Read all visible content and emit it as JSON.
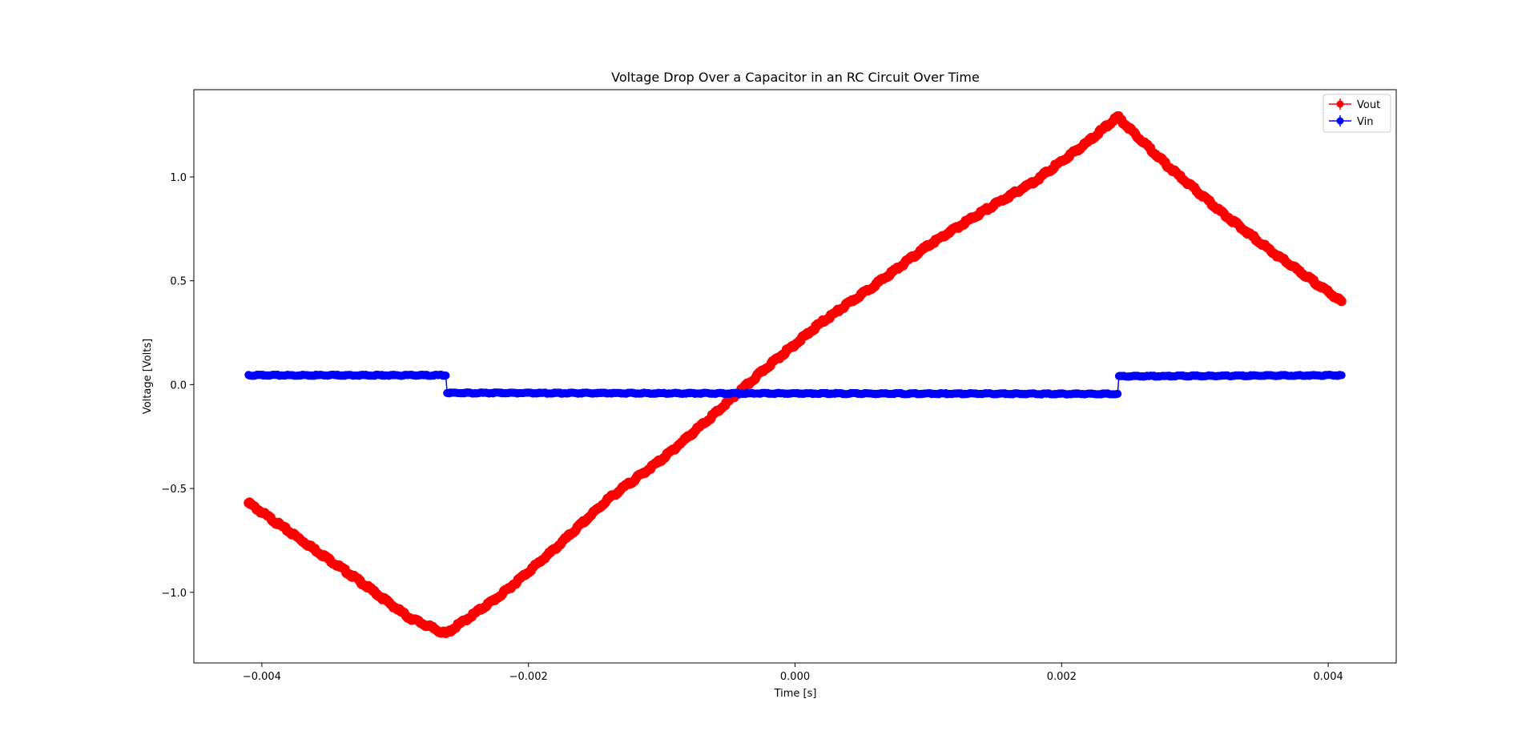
{
  "chart_data": {
    "type": "line",
    "title": "Voltage Drop Over a Capacitor in an RC Circuit Over Time",
    "xlabel": "Time [s]",
    "ylabel": "Voltage [Volts]",
    "xlim": [
      -0.00451,
      0.00451
    ],
    "ylim": [
      -1.34,
      1.42
    ],
    "xticks": [
      -0.004,
      -0.002,
      0.0,
      0.002,
      0.004
    ],
    "xtick_labels": [
      "−0.004",
      "−0.002",
      "0.000",
      "0.002",
      "0.004"
    ],
    "yticks": [
      -1.0,
      -0.5,
      0.0,
      0.5,
      1.0
    ],
    "ytick_labels": [
      "−1.0",
      "−0.5",
      "0.0",
      "0.5",
      "1.0"
    ],
    "grid": false,
    "legend_position": "top-right",
    "markers": "filled circles with error bars",
    "series": [
      {
        "name": "Vout",
        "color": "#ff0000",
        "x": [
          -0.0041,
          -0.0037,
          -0.0033,
          -0.0029,
          -0.00262,
          -0.0022,
          -0.0018,
          -0.0014,
          -0.001,
          -0.0006,
          -0.0002,
          0.0002,
          0.0006,
          0.001,
          0.0014,
          0.0018,
          0.0022,
          0.00242,
          0.0028,
          0.0032,
          0.0036,
          0.0041
        ],
        "y": [
          -0.57,
          -0.75,
          -0.93,
          -1.12,
          -1.2,
          -1.01,
          -0.79,
          -0.55,
          -0.36,
          -0.14,
          0.09,
          0.3,
          0.48,
          0.67,
          0.83,
          0.98,
          1.17,
          1.29,
          1.05,
          0.83,
          0.63,
          0.4
        ]
      },
      {
        "name": "Vin",
        "color": "#0000ff",
        "x": [
          -0.0041,
          -0.00262,
          -0.00261,
          0.00242,
          0.00243,
          0.0041
        ],
        "y": [
          0.045,
          0.045,
          -0.04,
          -0.045,
          0.04,
          0.045
        ]
      }
    ]
  }
}
